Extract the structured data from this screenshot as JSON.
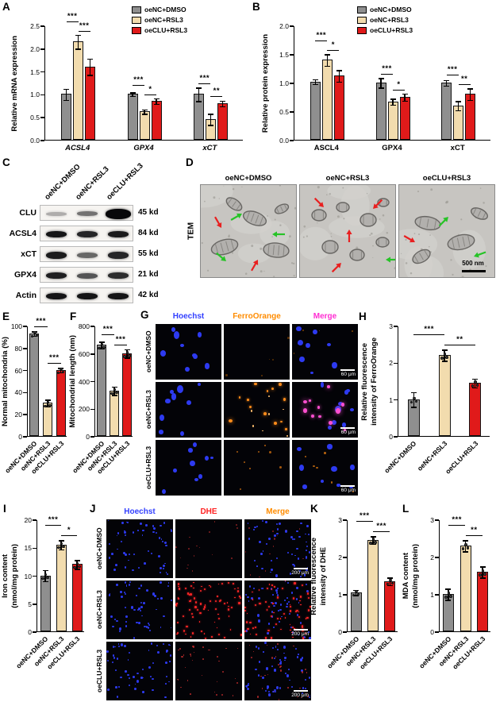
{
  "letters": {
    "A": "A",
    "B": "B",
    "C": "C",
    "D": "D",
    "E": "E",
    "F": "F",
    "G": "G",
    "H": "H",
    "I": "I",
    "J": "J",
    "K": "K",
    "L": "L"
  },
  "colors": {
    "series": [
      "#8f8f8f",
      "#f2dcae",
      "#e01a1a"
    ],
    "hoechst_blue": "#3340ff",
    "ferroorange": "#ff8c00",
    "merge_magenta": "#ff2dd2",
    "dhe_red": "#ff2222",
    "merge_orange": "#ff8c00"
  },
  "legend_items": [
    {
      "label": "oeNC+DMSO",
      "color": "#8f8f8f"
    },
    {
      "label": "oeNC+RSL3",
      "color": "#f2dcae"
    },
    {
      "label": "oeCLU+RSL3",
      "color": "#e01a1a"
    }
  ],
  "western_blot": {
    "col_headers": [
      "oeNC+DMSO",
      "oeNC+RSL3",
      "oeCLU+RSL3"
    ],
    "rows": [
      {
        "label": "CLU",
        "size": "45 kd",
        "intensity": [
          0.3,
          0.55,
          1
        ],
        "band_heights": [
          5,
          6,
          13
        ]
      },
      {
        "label": "ACSL4",
        "size": "84 kd",
        "intensity": [
          0.95,
          0.88,
          0.92
        ],
        "band_heights": [
          8,
          8,
          8
        ]
      },
      {
        "label": "xCT",
        "size": "55 kd",
        "intensity": [
          0.92,
          0.6,
          0.88
        ],
        "band_heights": [
          9,
          7,
          9
        ]
      },
      {
        "label": "GPX4",
        "size": "21 kd",
        "intensity": [
          0.9,
          0.68,
          0.85
        ],
        "band_heights": [
          8,
          7,
          8
        ]
      },
      {
        "label": "Actin",
        "size": "42 kd",
        "intensity": [
          0.95,
          0.95,
          0.95
        ],
        "band_heights": [
          8,
          8,
          8
        ]
      }
    ]
  },
  "tem": {
    "side_label": "TEM",
    "titles": [
      "oeNC+DMSO",
      "oeNC+RSL3",
      "oeCLU+RSL3"
    ],
    "scale_label": "500 nm"
  },
  "panel_g": {
    "col_headers": [
      {
        "label": "Hoechst",
        "color": "#3340ff"
      },
      {
        "label": "FerroOrange",
        "color": "#ff8c00"
      },
      {
        "label": "Merge",
        "color": "#ff2dd2"
      }
    ],
    "row_labels": [
      "oeNC+DMSO",
      "oeNC+RSL3",
      "oeCLU+RSL3"
    ],
    "scale_label": "60 μm"
  },
  "panel_j": {
    "col_headers": [
      {
        "label": "Hoechst",
        "color": "#3340ff"
      },
      {
        "label": "DHE",
        "color": "#ff2222"
      },
      {
        "label": "Merge",
        "color": "#ff8c00"
      }
    ],
    "row_labels": [
      "oeNC+DMSO",
      "oeNC+RSL3",
      "oeCLU+RSL3"
    ],
    "scale_label": "200 μm"
  },
  "chart_data": [
    {
      "id": "A",
      "type": "bar",
      "ylabel": "Relative mRNA expression",
      "categories": [
        "ACSL4",
        "GPX4",
        "xCT"
      ],
      "italic_categories": true,
      "series": [
        {
          "name": "oeNC+DMSO",
          "values": [
            1.0,
            1.0,
            1.0
          ],
          "errors": [
            0.12,
            0.04,
            0.15
          ]
        },
        {
          "name": "oeNC+RSL3",
          "values": [
            2.15,
            0.62,
            0.45
          ],
          "errors": [
            0.15,
            0.05,
            0.12
          ]
        },
        {
          "name": "oeCLU+RSL3",
          "values": [
            1.6,
            0.85,
            0.8
          ],
          "errors": [
            0.18,
            0.06,
            0.06
          ]
        }
      ],
      "ylim": [
        0,
        2.5
      ],
      "yticks": [
        0,
        0.5,
        1,
        1.5,
        2,
        2.5
      ],
      "ytick_decimals": 1,
      "sig": [
        [
          "***",
          "***"
        ],
        [
          "***",
          "*"
        ],
        [
          "***",
          "**"
        ]
      ],
      "legend": true
    },
    {
      "id": "B",
      "type": "bar",
      "ylabel": "Relative protein expression",
      "categories": [
        "ASCL4",
        "GPX4",
        "xCT"
      ],
      "series": [
        {
          "name": "oeNC+DMSO",
          "values": [
            1.02,
            1.0,
            1.0
          ],
          "errors": [
            0.04,
            0.08,
            0.05
          ]
        },
        {
          "name": "oeNC+RSL3",
          "values": [
            1.4,
            0.67,
            0.6
          ],
          "errors": [
            0.1,
            0.05,
            0.08
          ]
        },
        {
          "name": "oeCLU+RSL3",
          "values": [
            1.12,
            0.75,
            0.8
          ],
          "errors": [
            0.1,
            0.06,
            0.1
          ]
        }
      ],
      "ylim": [
        0,
        2
      ],
      "yticks": [
        0,
        0.5,
        1,
        1.5,
        2
      ],
      "ytick_decimals": 1,
      "sig": [
        [
          "***",
          "*"
        ],
        [
          "***",
          "*"
        ],
        [
          "***",
          "**"
        ]
      ],
      "legend": true
    },
    {
      "id": "E",
      "type": "bar",
      "ylabel": "Normal mitochondria (%)",
      "categories": [
        "oeNC+DMSO",
        "oeNC+RSL3",
        "oeCLU+RSL3"
      ],
      "values": [
        93,
        30,
        60
      ],
      "errors": [
        2,
        3,
        2
      ],
      "ylim": [
        0,
        100
      ],
      "yticks": [
        0,
        20,
        40,
        60,
        80,
        100
      ],
      "sig": [
        "***",
        "***"
      ]
    },
    {
      "id": "F",
      "type": "bar",
      "ylabel": "Mitochondrial length (nm)",
      "categories": [
        "oeNC+DMSO",
        "oeNC+RSL3",
        "oeCLU+RSL3"
      ],
      "values": [
        660,
        330,
        600
      ],
      "errors": [
        25,
        30,
        30
      ],
      "ylim": [
        0,
        800
      ],
      "yticks": [
        0,
        200,
        400,
        600,
        800
      ],
      "sig": [
        "***",
        "***"
      ]
    },
    {
      "id": "H",
      "type": "bar",
      "ylabel": [
        "Relative fluorescence",
        "intensity of FerroOrange"
      ],
      "categories": [
        "oeNC+DMSO",
        "oeNC+RSL3",
        "oeCLU+RSL3"
      ],
      "values": [
        1.0,
        2.2,
        1.45
      ],
      "errors": [
        0.2,
        0.15,
        0.12
      ],
      "ylim": [
        0,
        3
      ],
      "yticks": [
        0,
        1,
        2,
        3
      ],
      "sig": [
        "***",
        "**"
      ]
    },
    {
      "id": "I",
      "type": "bar",
      "ylabel": [
        "Iron content",
        "(nmol/mg protein)"
      ],
      "categories": [
        "oeNC+DMSO",
        "oeNC+RSL3",
        "oeCLU+RSL3"
      ],
      "values": [
        10,
        15.5,
        12
      ],
      "errors": [
        1,
        0.8,
        0.8
      ],
      "ylim": [
        0,
        20
      ],
      "yticks": [
        0,
        5,
        10,
        15,
        20
      ],
      "sig": [
        "***",
        "*"
      ]
    },
    {
      "id": "K",
      "type": "bar",
      "ylabel": [
        "Relative fluorescence",
        "intensity of DHE"
      ],
      "categories": [
        "oeNC+DMSO",
        "oeNC+RSL3",
        "oeCLU+RSL3"
      ],
      "values": [
        1.05,
        2.45,
        1.35
      ],
      "errors": [
        0.07,
        0.1,
        0.1
      ],
      "ylim": [
        0,
        3
      ],
      "yticks": [
        0,
        1,
        2,
        3
      ],
      "sig": [
        "***",
        "***"
      ]
    },
    {
      "id": "L",
      "type": "bar",
      "ylabel": [
        "MDA content",
        "(nmol/mg protein)"
      ],
      "categories": [
        "oeNC+DMSO",
        "oeNC+RSL3",
        "oeCLU+RSL3"
      ],
      "values": [
        1.0,
        2.3,
        1.6
      ],
      "errors": [
        0.15,
        0.15,
        0.15
      ],
      "ylim": [
        0,
        3
      ],
      "yticks": [
        0,
        1,
        2,
        3
      ],
      "sig": [
        "***",
        "**"
      ]
    }
  ]
}
